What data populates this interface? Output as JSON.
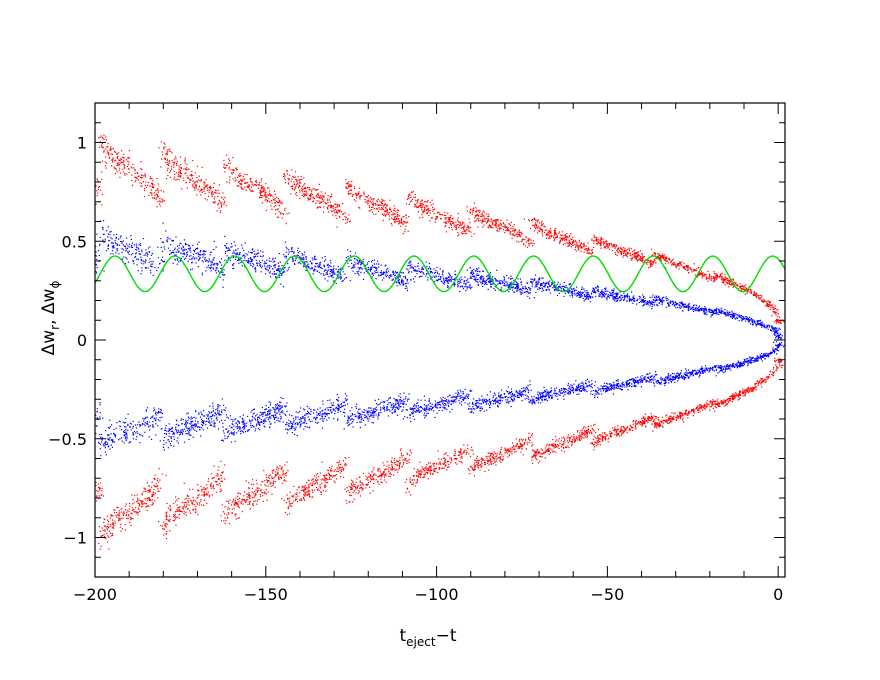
{
  "chart_data": {
    "type": "scatter",
    "title": "",
    "xlabel": {
      "base": "t",
      "sub": "eject",
      "suffix": "−t"
    },
    "ylabel": {
      "a_base": "Δw",
      "a_sub": "r",
      "sep": ", ",
      "b_base": "Δw",
      "b_sub": "ϕ"
    },
    "xlim": [
      -200,
      2
    ],
    "ylim": [
      -1.2,
      1.2
    ],
    "xticks": [
      -200,
      -150,
      -100,
      -50,
      0
    ],
    "xtick_labels": [
      "−200",
      "−150",
      "−100",
      "−50",
      "0"
    ],
    "yticks": [
      -1,
      -0.5,
      0,
      0.5,
      1
    ],
    "ytick_labels": [
      "−1",
      "−0.5",
      "0",
      "0.5",
      "1"
    ],
    "grid": false,
    "series": [
      {
        "kind": "point-cloud",
        "color": "#ff0000",
        "orbit_period": 18,
        "envelope": {
          "near_end": 0.1,
          "at_minus_200": 0.8
        },
        "hook_amplitude": 0.28
      },
      {
        "kind": "point-cloud",
        "color": "#0000ff",
        "orbit_period": 18,
        "envelope": {
          "near_end": 0.02,
          "at_minus_200": 0.42
        },
        "hook_amplitude": 0.16
      },
      {
        "kind": "line",
        "color": "#00dd00",
        "center": 0.335,
        "amplitude": 0.09,
        "period": 17.5
      }
    ]
  }
}
